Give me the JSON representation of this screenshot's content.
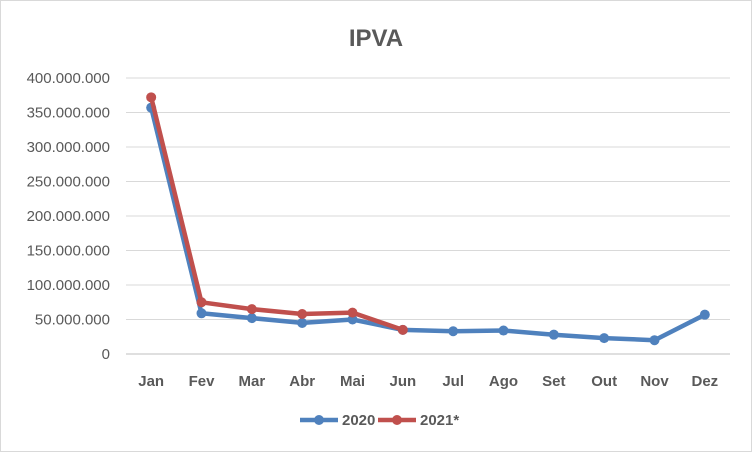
{
  "chart_data": {
    "type": "line",
    "title": "IPVA",
    "xlabel": "",
    "ylabel": "",
    "categories": [
      "Jan",
      "Fev",
      "Mar",
      "Abr",
      "Mai",
      "Jun",
      "Jul",
      "Ago",
      "Set",
      "Out",
      "Nov",
      "Dez"
    ],
    "y_ticks": [
      "0",
      "50.000.000",
      "100.000.000",
      "150.000.000",
      "200.000.000",
      "250.000.000",
      "300.000.000",
      "350.000.000",
      "400.000.000"
    ],
    "ylim": [
      0,
      400000000
    ],
    "grid": true,
    "legend_position": "bottom",
    "series": [
      {
        "name": "2020",
        "color": "#4f81bd",
        "values": [
          357000000,
          59000000,
          52000000,
          45000000,
          50000000,
          35000000,
          33000000,
          34000000,
          28000000,
          23000000,
          20000000,
          57000000
        ]
      },
      {
        "name": "2021*",
        "color": "#c0504d",
        "values": [
          372000000,
          75000000,
          65000000,
          58000000,
          60000000,
          35000000,
          null,
          null,
          null,
          null,
          null,
          null
        ]
      }
    ]
  }
}
